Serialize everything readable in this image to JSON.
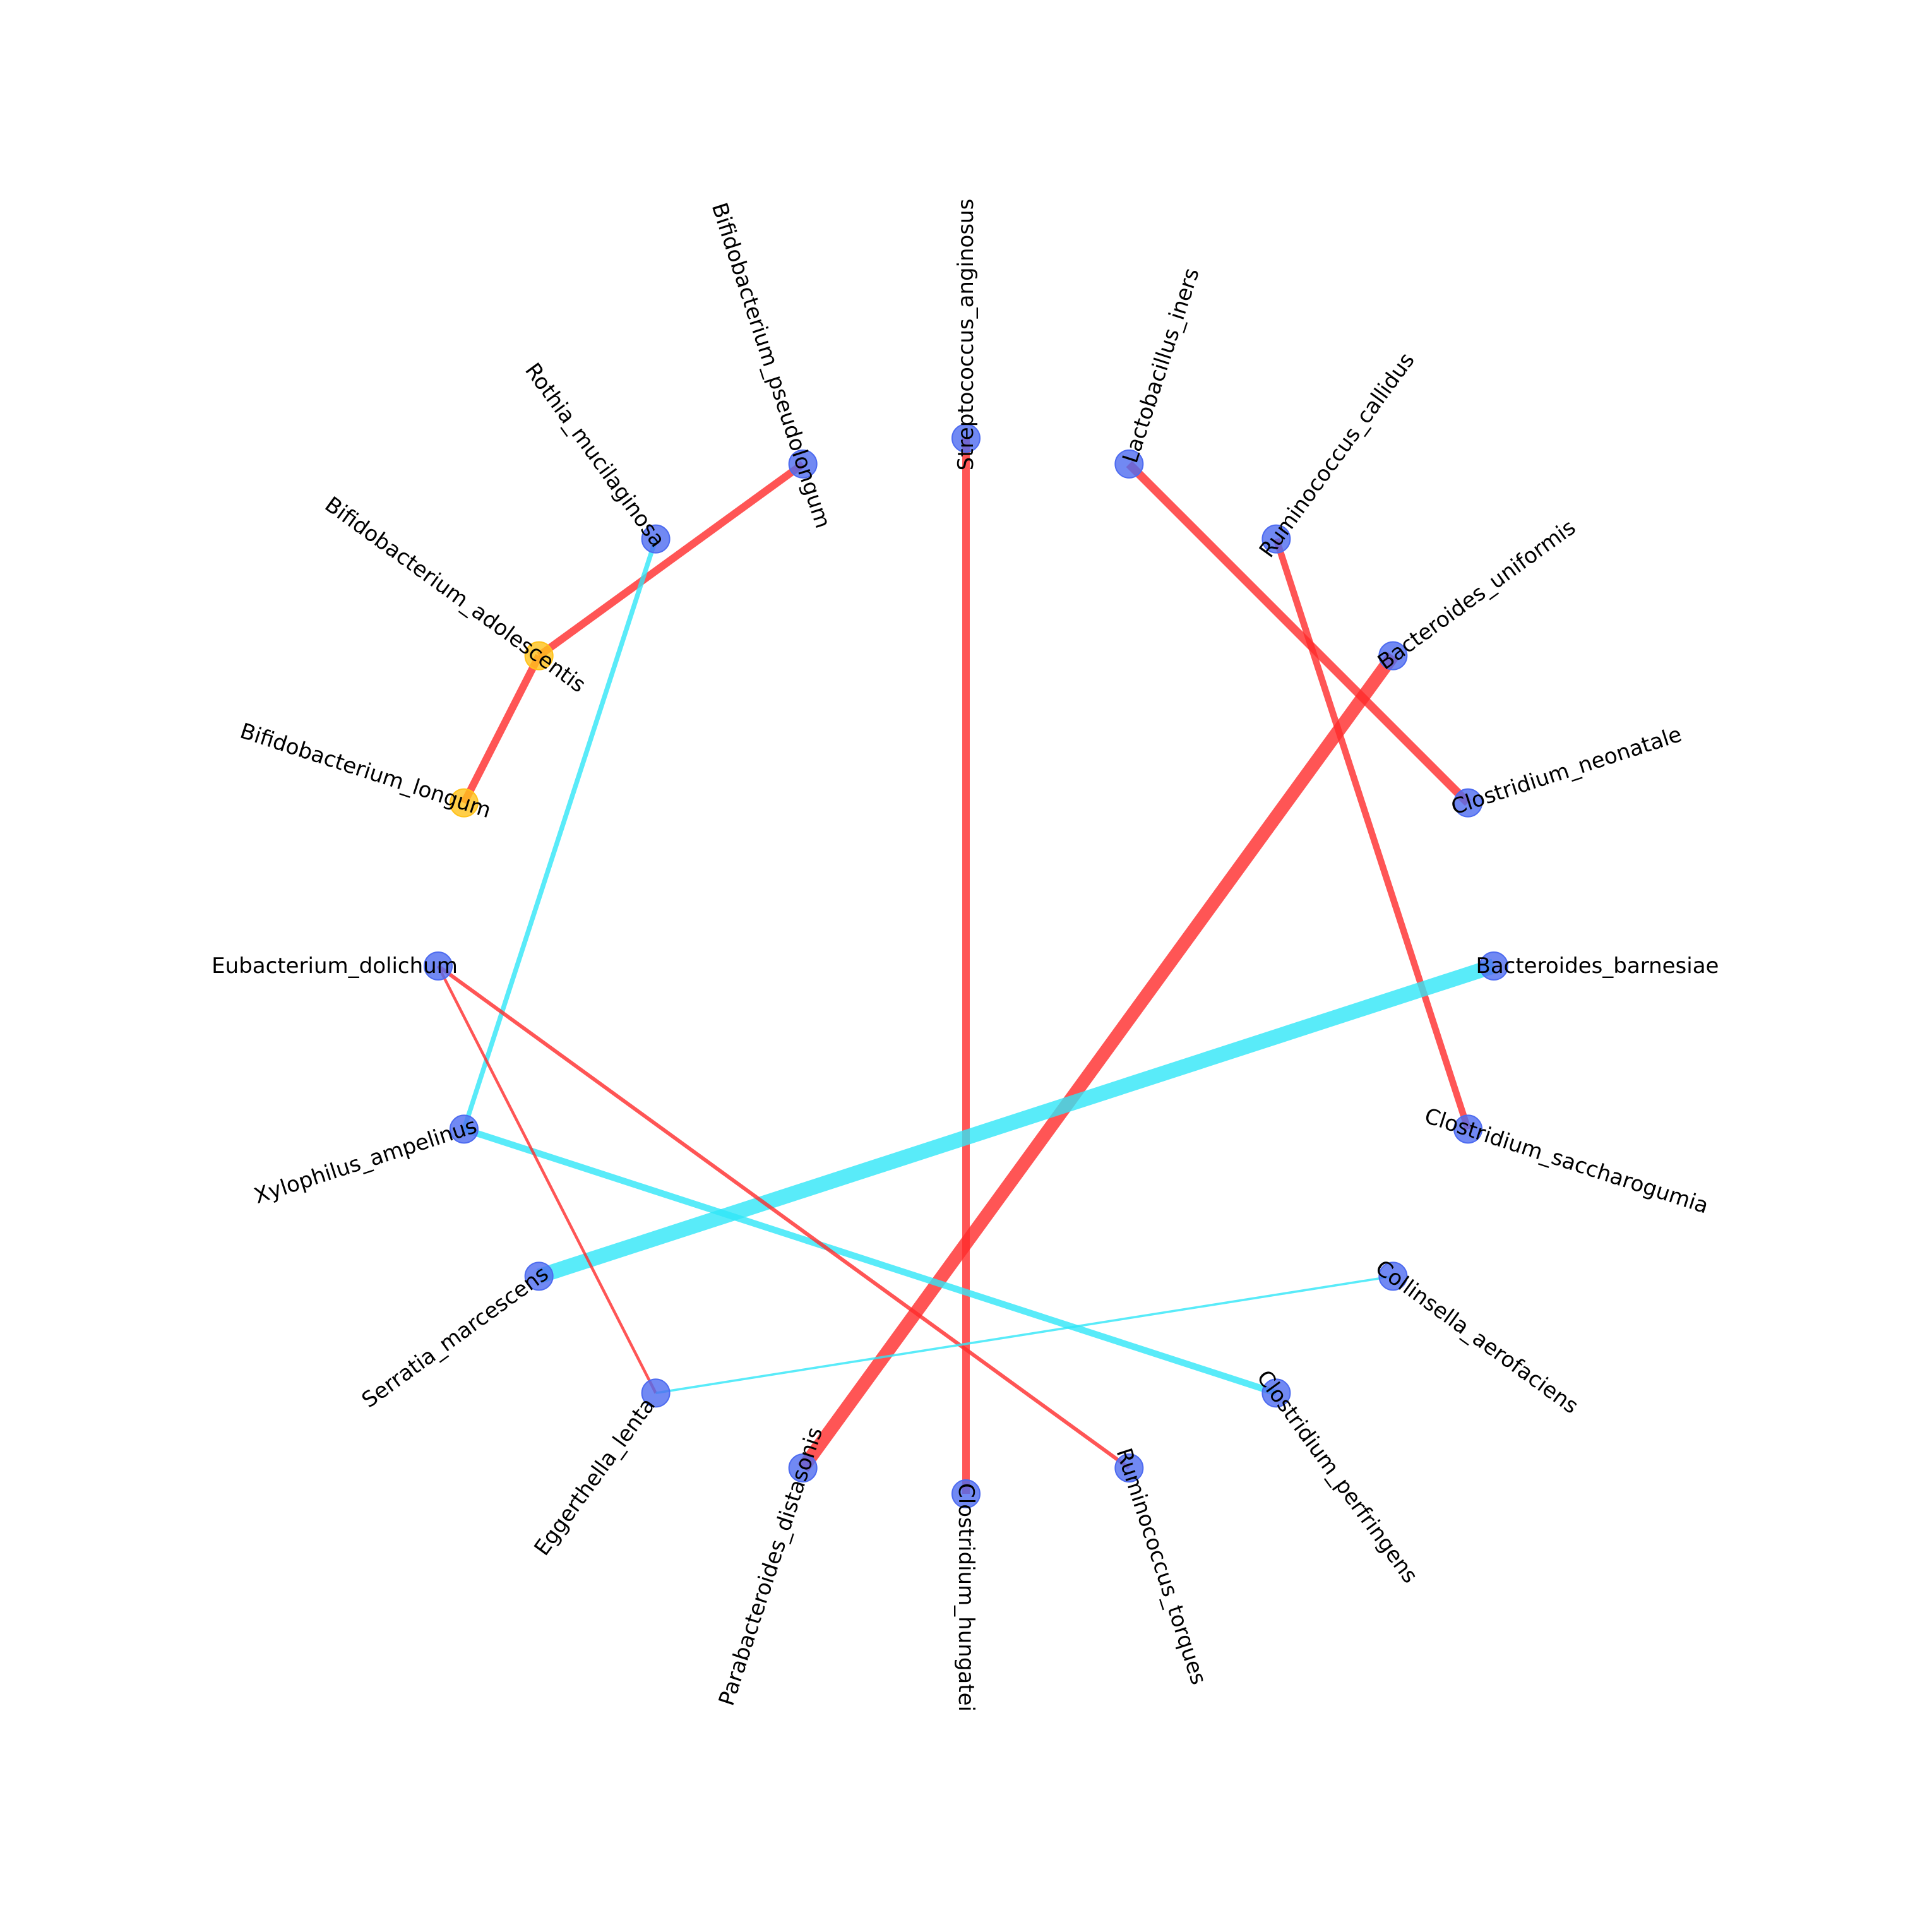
{
  "nodes": [
    {
      "id": "Streptococcus_anginosus",
      "label": "Streptococcus_anginosus",
      "color": "#4d6bf0"
    },
    {
      "id": "Lactobacillus_iners",
      "label": "Lactobacillus_iners",
      "color": "#4d6bf0"
    },
    {
      "id": "Ruminococcus_callidus",
      "label": "Ruminococcus_callidus",
      "color": "#4d6bf0"
    },
    {
      "id": "Bacteroides_uniformis",
      "label": "Bacteroides_uniformis",
      "color": "#4d6bf0"
    },
    {
      "id": "Clostridium_neonatale",
      "label": "Clostridium_neonatale",
      "color": "#4d6bf0"
    },
    {
      "id": "Bacteroides_barnesiae",
      "label": "Bacteroides_barnesiae",
      "color": "#4d6bf0"
    },
    {
      "id": "Clostridium_saccharogumia",
      "label": "Clostridium_saccharogumia",
      "color": "#4d6bf0"
    },
    {
      "id": "Collinsella_aerofaciens",
      "label": "Collinsella_aerofaciens",
      "color": "#4d6bf0"
    },
    {
      "id": "Clostridium_perfringens",
      "label": "Clostridium_perfringens",
      "color": "#4d6bf0"
    },
    {
      "id": "Ruminococcus_torques",
      "label": "Ruminococcus_torques",
      "color": "#4d6bf0"
    },
    {
      "id": "Clostridium_hungatei",
      "label": "Clostridium_hungatei",
      "color": "#4d6bf0"
    },
    {
      "id": "Parabacteroides_distasonis",
      "label": "Parabacteroides_distasonis",
      "color": "#4d6bf0"
    },
    {
      "id": "Eggerthella_lenta",
      "label": "Eggerthella_lenta",
      "color": "#4d6bf0"
    },
    {
      "id": "Serratia_marcescens",
      "label": "Serratia_marcescens",
      "color": "#4d6bf0"
    },
    {
      "id": "Xylophilus_ampelinus",
      "label": "Xylophilus_ampelinus",
      "color": "#4d6bf0"
    },
    {
      "id": "Eubacterium_dolichum",
      "label": "Eubacterium_dolichum",
      "color": "#4d6bf0"
    },
    {
      "id": "Bifidobacterium_longum",
      "label": "Bifidobacterium_longum",
      "color": "#ffc21a"
    },
    {
      "id": "Bifidobacterium_adolescentis",
      "label": "Bifidobacterium_adolescentis",
      "color": "#ffc21a"
    },
    {
      "id": "Rothia_mucilaginosa",
      "label": "Rothia_mucilaginosa",
      "color": "#4d6bf0"
    },
    {
      "id": "Bifidobacterium_pseudolongum",
      "label": "Bifidobacterium_pseudolongum",
      "color": "#4d6bf0"
    }
  ],
  "edges": [
    {
      "source": "Streptococcus_anginosus",
      "target": "Clostridium_hungatei",
      "sign": "positive",
      "weight": 4
    },
    {
      "source": "Lactobacillus_iners",
      "target": "Clostridium_neonatale",
      "sign": "positive",
      "weight": 4.5
    },
    {
      "source": "Ruminococcus_callidus",
      "target": "Clostridium_saccharogumia",
      "sign": "positive",
      "weight": 3.5
    },
    {
      "source": "Bacteroides_uniformis",
      "target": "Parabacteroides_distasonis",
      "sign": "positive",
      "weight": 7
    },
    {
      "source": "Bacteroides_barnesiae",
      "target": "Serratia_marcescens",
      "sign": "negative",
      "weight": 8
    },
    {
      "source": "Bifidobacterium_pseudolongum",
      "target": "Bifidobacterium_adolescentis",
      "sign": "positive",
      "weight": 4
    },
    {
      "source": "Bifidobacterium_adolescentis",
      "target": "Bifidobacterium_longum",
      "sign": "positive",
      "weight": 4
    },
    {
      "source": "Rothia_mucilaginosa",
      "target": "Xylophilus_ampelinus",
      "sign": "negative",
      "weight": 2.5
    },
    {
      "source": "Xylophilus_ampelinus",
      "target": "Clostridium_perfringens",
      "sign": "negative",
      "weight": 3.5
    },
    {
      "source": "Eubacterium_dolichum",
      "target": "Ruminococcus_torques",
      "sign": "positive",
      "weight": 2
    },
    {
      "source": "Eubacterium_dolichum",
      "target": "Eggerthella_lenta",
      "sign": "positive",
      "weight": 1.5
    },
    {
      "source": "Eggerthella_lenta",
      "target": "Collinsella_aerofaciens",
      "sign": "negative",
      "weight": 1.2
    }
  ],
  "colors": {
    "positive_edge": "#ff2a2a",
    "negative_edge": "#2fe6f7",
    "node_default": "#4d6bf0",
    "node_highlight": "#ffc21a"
  }
}
